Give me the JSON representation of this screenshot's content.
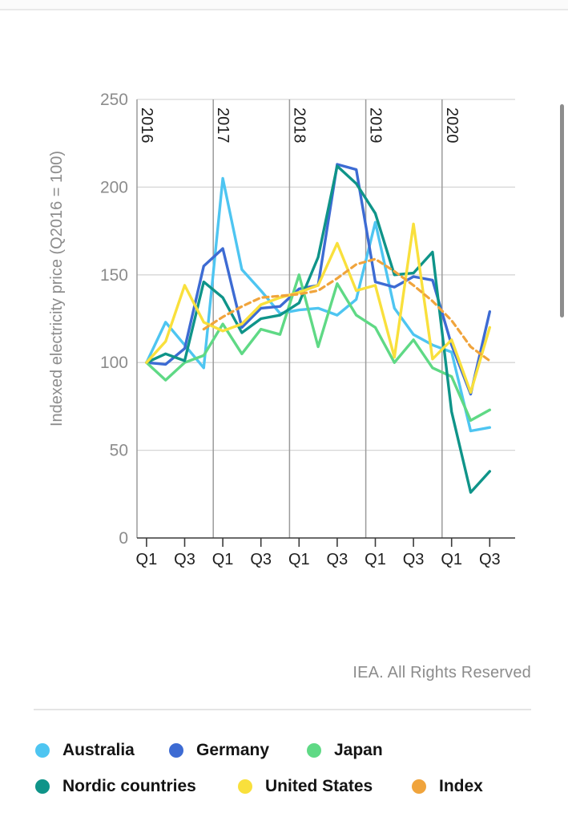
{
  "page": {
    "background": "#ffffff",
    "top_border_color": "#e9e9e9"
  },
  "footer": {
    "credit": "IEA. All Rights Reserved"
  },
  "scrollbar": {
    "color": "#8d8d8d"
  },
  "chart_data": {
    "type": "line",
    "title": "",
    "ylabel": "Indexed electricity price (Q2016 = 100)",
    "xlabel": "",
    "ylim": [
      0,
      250
    ],
    "y_ticks": [
      0,
      50,
      100,
      150,
      200,
      250
    ],
    "grid": "horizontal-and-year-boundaries",
    "legend_position": "bottom",
    "year_labels": [
      "2016",
      "2017",
      "2018",
      "2019",
      "2020"
    ],
    "x_ticks": [
      {
        "i": 0,
        "label": "Q1"
      },
      {
        "i": 2,
        "label": "Q3"
      },
      {
        "i": 4,
        "label": "Q1"
      },
      {
        "i": 6,
        "label": "Q3"
      },
      {
        "i": 8,
        "label": "Q1"
      },
      {
        "i": 10,
        "label": "Q3"
      },
      {
        "i": 12,
        "label": "Q1"
      },
      {
        "i": 14,
        "label": "Q3"
      },
      {
        "i": 16,
        "label": "Q1"
      },
      {
        "i": 18,
        "label": "Q3"
      }
    ],
    "x": [
      "Q1 2016",
      "Q2 2016",
      "Q3 2016",
      "Q4 2016",
      "Q1 2017",
      "Q2 2017",
      "Q3 2017",
      "Q4 2017",
      "Q1 2018",
      "Q2 2018",
      "Q3 2018",
      "Q4 2018",
      "Q1 2019",
      "Q2 2019",
      "Q3 2019",
      "Q4 2019",
      "Q1 2020",
      "Q2 2020",
      "Q3 2020"
    ],
    "series": [
      {
        "name": "Australia",
        "color": "#4EC5F1",
        "dashed": false,
        "values": [
          100,
          123,
          110,
          97,
          205,
          153,
          141,
          128,
          130,
          131,
          127,
          136,
          180,
          131,
          116,
          110,
          106,
          61,
          63
        ]
      },
      {
        "name": "Germany",
        "color": "#3D6BD3",
        "dashed": false,
        "values": [
          100,
          99,
          108,
          155,
          165,
          120,
          131,
          132,
          142,
          144,
          213,
          210,
          146,
          143,
          149,
          147,
          110,
          82,
          129
        ]
      },
      {
        "name": "Japan",
        "color": "#5FD985",
        "dashed": false,
        "values": [
          100,
          90,
          100,
          104,
          122,
          105,
          119,
          116,
          150,
          109,
          145,
          127,
          120,
          100,
          113,
          97,
          92,
          67,
          73
        ]
      },
      {
        "name": "Nordic countries",
        "color": "#0F9489",
        "dashed": false,
        "values": [
          100,
          105,
          101,
          146,
          137,
          117,
          125,
          127,
          134,
          160,
          212,
          202,
          185,
          150,
          151,
          163,
          72,
          26,
          38
        ]
      },
      {
        "name": "United States",
        "color": "#F9E03C",
        "dashed": false,
        "values": [
          100,
          112,
          144,
          123,
          118,
          122,
          133,
          137,
          140,
          144,
          168,
          141,
          144,
          103,
          179,
          102,
          113,
          83,
          120
        ]
      },
      {
        "name": "Index",
        "color": "#F0A43C",
        "dashed": true,
        "values": [
          null,
          null,
          null,
          119,
          126,
          132,
          137,
          138,
          139,
          141,
          148,
          156,
          159,
          152,
          144,
          135,
          124,
          109,
          101
        ]
      }
    ]
  }
}
